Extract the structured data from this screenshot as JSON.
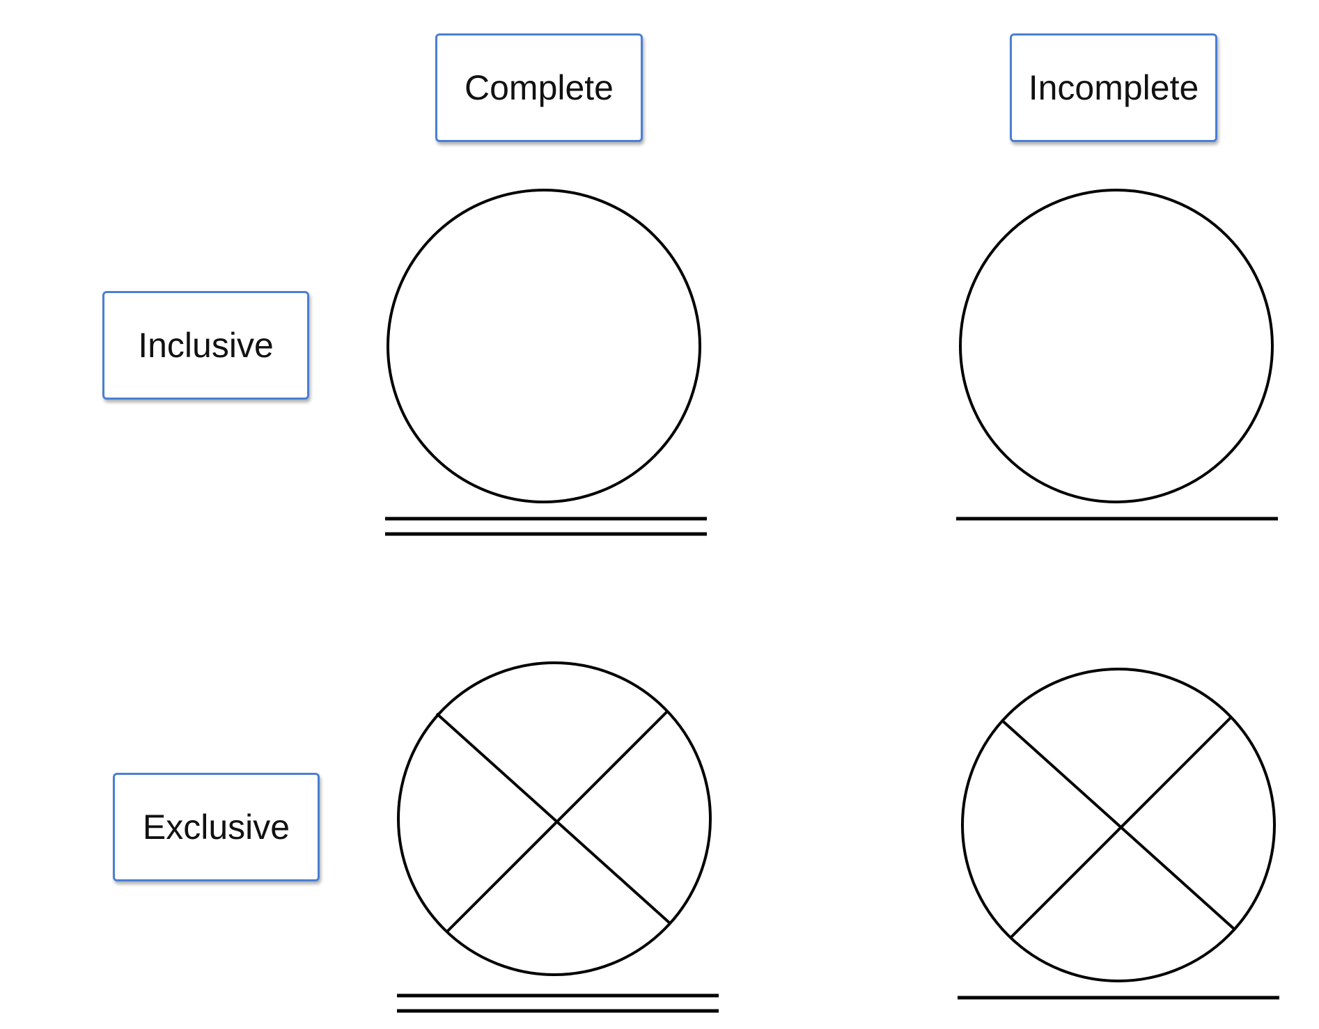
{
  "columns": {
    "complete": "Complete",
    "incomplete": "Incomplete"
  },
  "rows": {
    "inclusive": "Inclusive",
    "exclusive": "Exclusive"
  },
  "colors": {
    "box_border": "#4a7fd4",
    "stroke": "#000000"
  },
  "symbols": [
    {
      "name": "inclusive-complete",
      "cross": false,
      "underline": "double"
    },
    {
      "name": "inclusive-incomplete",
      "cross": false,
      "underline": "single"
    },
    {
      "name": "exclusive-complete",
      "cross": true,
      "underline": "double"
    },
    {
      "name": "exclusive-incomplete",
      "cross": true,
      "underline": "single"
    }
  ]
}
